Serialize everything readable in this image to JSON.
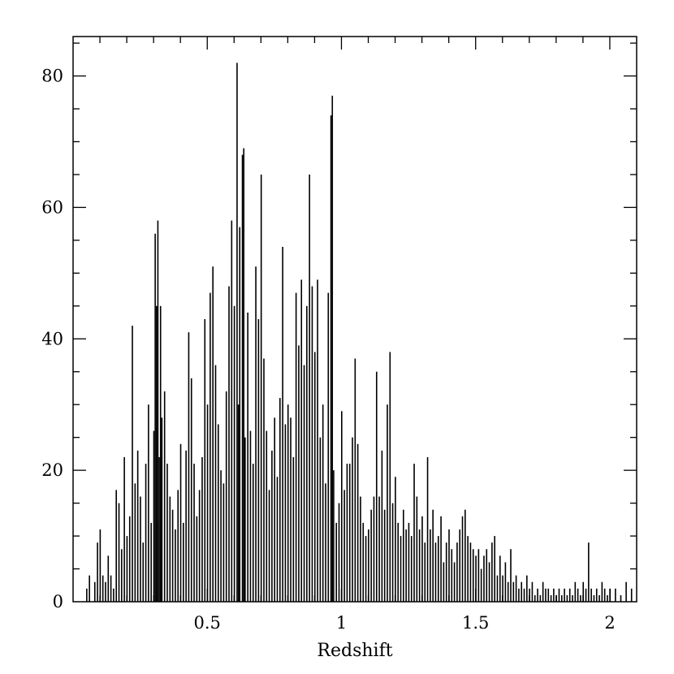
{
  "chart_data": {
    "type": "bar",
    "xlabel": "Redshift",
    "ylabel": "",
    "xlim": [
      0.0,
      2.1
    ],
    "ylim": [
      0,
      86
    ],
    "x_ticks": [
      {
        "value": 0.5,
        "label": "0.5"
      },
      {
        "value": 1.0,
        "label": "1"
      },
      {
        "value": 1.5,
        "label": "1.5"
      },
      {
        "value": 2.0,
        "label": "2"
      }
    ],
    "y_ticks": [
      {
        "value": 0,
        "label": "0"
      },
      {
        "value": 20,
        "label": "20"
      },
      {
        "value": 40,
        "label": "40"
      },
      {
        "value": 60,
        "label": "60"
      },
      {
        "value": 80,
        "label": "80"
      }
    ],
    "bin_width": 0.00286,
    "bins": [
      [
        0.05,
        2
      ],
      [
        0.06,
        4
      ],
      [
        0.08,
        3
      ],
      [
        0.09,
        9
      ],
      [
        0.1,
        11
      ],
      [
        0.11,
        4
      ],
      [
        0.12,
        3
      ],
      [
        0.13,
        7
      ],
      [
        0.14,
        4
      ],
      [
        0.15,
        2
      ],
      [
        0.16,
        17
      ],
      [
        0.17,
        15
      ],
      [
        0.18,
        8
      ],
      [
        0.19,
        22
      ],
      [
        0.2,
        10
      ],
      [
        0.21,
        13
      ],
      [
        0.22,
        42
      ],
      [
        0.23,
        18
      ],
      [
        0.24,
        23
      ],
      [
        0.25,
        16
      ],
      [
        0.26,
        9
      ],
      [
        0.27,
        21
      ],
      [
        0.28,
        30
      ],
      [
        0.29,
        12
      ],
      [
        0.3,
        26
      ],
      [
        0.305,
        56
      ],
      [
        0.31,
        45
      ],
      [
        0.315,
        58
      ],
      [
        0.32,
        22
      ],
      [
        0.325,
        45
      ],
      [
        0.33,
        28
      ],
      [
        0.34,
        32
      ],
      [
        0.35,
        21
      ],
      [
        0.36,
        16
      ],
      [
        0.37,
        14
      ],
      [
        0.38,
        11
      ],
      [
        0.39,
        17
      ],
      [
        0.4,
        24
      ],
      [
        0.41,
        12
      ],
      [
        0.42,
        23
      ],
      [
        0.43,
        41
      ],
      [
        0.44,
        34
      ],
      [
        0.45,
        21
      ],
      [
        0.46,
        13
      ],
      [
        0.47,
        17
      ],
      [
        0.48,
        22
      ],
      [
        0.49,
        43
      ],
      [
        0.5,
        30
      ],
      [
        0.51,
        47
      ],
      [
        0.52,
        51
      ],
      [
        0.53,
        36
      ],
      [
        0.54,
        27
      ],
      [
        0.55,
        20
      ],
      [
        0.56,
        18
      ],
      [
        0.57,
        32
      ],
      [
        0.58,
        48
      ],
      [
        0.59,
        58
      ],
      [
        0.6,
        45
      ],
      [
        0.61,
        82
      ],
      [
        0.615,
        30
      ],
      [
        0.62,
        57
      ],
      [
        0.63,
        68
      ],
      [
        0.635,
        69
      ],
      [
        0.64,
        25
      ],
      [
        0.65,
        44
      ],
      [
        0.66,
        26
      ],
      [
        0.67,
        21
      ],
      [
        0.68,
        51
      ],
      [
        0.69,
        43
      ],
      [
        0.7,
        65
      ],
      [
        0.71,
        37
      ],
      [
        0.72,
        26
      ],
      [
        0.73,
        17
      ],
      [
        0.74,
        23
      ],
      [
        0.75,
        28
      ],
      [
        0.76,
        19
      ],
      [
        0.77,
        31
      ],
      [
        0.78,
        54
      ],
      [
        0.79,
        27
      ],
      [
        0.8,
        30
      ],
      [
        0.81,
        28
      ],
      [
        0.82,
        22
      ],
      [
        0.83,
        47
      ],
      [
        0.84,
        39
      ],
      [
        0.85,
        49
      ],
      [
        0.86,
        36
      ],
      [
        0.87,
        45
      ],
      [
        0.88,
        65
      ],
      [
        0.89,
        48
      ],
      [
        0.9,
        38
      ],
      [
        0.91,
        49
      ],
      [
        0.92,
        25
      ],
      [
        0.93,
        30
      ],
      [
        0.94,
        18
      ],
      [
        0.95,
        47
      ],
      [
        0.96,
        74
      ],
      [
        0.965,
        77
      ],
      [
        0.97,
        20
      ],
      [
        0.98,
        12
      ],
      [
        0.99,
        15
      ],
      [
        1.0,
        29
      ],
      [
        1.01,
        17
      ],
      [
        1.02,
        21
      ],
      [
        1.03,
        21
      ],
      [
        1.04,
        25
      ],
      [
        1.05,
        37
      ],
      [
        1.06,
        24
      ],
      [
        1.07,
        16
      ],
      [
        1.08,
        12
      ],
      [
        1.09,
        10
      ],
      [
        1.1,
        11
      ],
      [
        1.11,
        14
      ],
      [
        1.12,
        16
      ],
      [
        1.13,
        35
      ],
      [
        1.14,
        16
      ],
      [
        1.15,
        23
      ],
      [
        1.16,
        14
      ],
      [
        1.17,
        30
      ],
      [
        1.18,
        38
      ],
      [
        1.19,
        15
      ],
      [
        1.2,
        19
      ],
      [
        1.21,
        12
      ],
      [
        1.22,
        10
      ],
      [
        1.23,
        14
      ],
      [
        1.24,
        11
      ],
      [
        1.25,
        12
      ],
      [
        1.26,
        10
      ],
      [
        1.27,
        21
      ],
      [
        1.28,
        16
      ],
      [
        1.29,
        11
      ],
      [
        1.3,
        13
      ],
      [
        1.31,
        9
      ],
      [
        1.32,
        22
      ],
      [
        1.33,
        11
      ],
      [
        1.34,
        14
      ],
      [
        1.35,
        9
      ],
      [
        1.36,
        10
      ],
      [
        1.37,
        13
      ],
      [
        1.38,
        6
      ],
      [
        1.39,
        9
      ],
      [
        1.4,
        11
      ],
      [
        1.41,
        8
      ],
      [
        1.42,
        6
      ],
      [
        1.43,
        9
      ],
      [
        1.44,
        11
      ],
      [
        1.45,
        13
      ],
      [
        1.46,
        14
      ],
      [
        1.47,
        10
      ],
      [
        1.48,
        9
      ],
      [
        1.49,
        8
      ],
      [
        1.5,
        7
      ],
      [
        1.51,
        8
      ],
      [
        1.52,
        5
      ],
      [
        1.53,
        7
      ],
      [
        1.54,
        8
      ],
      [
        1.55,
        6
      ],
      [
        1.56,
        9
      ],
      [
        1.57,
        10
      ],
      [
        1.58,
        4
      ],
      [
        1.59,
        7
      ],
      [
        1.6,
        4
      ],
      [
        1.61,
        6
      ],
      [
        1.62,
        3
      ],
      [
        1.63,
        8
      ],
      [
        1.64,
        3
      ],
      [
        1.65,
        4
      ],
      [
        1.66,
        2
      ],
      [
        1.67,
        3
      ],
      [
        1.68,
        2
      ],
      [
        1.69,
        4
      ],
      [
        1.7,
        2
      ],
      [
        1.71,
        3
      ],
      [
        1.72,
        1
      ],
      [
        1.73,
        2
      ],
      [
        1.74,
        1
      ],
      [
        1.75,
        3
      ],
      [
        1.76,
        2
      ],
      [
        1.77,
        2
      ],
      [
        1.78,
        1
      ],
      [
        1.79,
        2
      ],
      [
        1.8,
        1
      ],
      [
        1.81,
        2
      ],
      [
        1.82,
        1
      ],
      [
        1.83,
        2
      ],
      [
        1.84,
        1
      ],
      [
        1.85,
        2
      ],
      [
        1.86,
        1
      ],
      [
        1.87,
        3
      ],
      [
        1.88,
        2
      ],
      [
        1.89,
        1
      ],
      [
        1.9,
        3
      ],
      [
        1.91,
        2
      ],
      [
        1.92,
        9
      ],
      [
        1.93,
        2
      ],
      [
        1.94,
        1
      ],
      [
        1.95,
        2
      ],
      [
        1.96,
        1
      ],
      [
        1.97,
        3
      ],
      [
        1.98,
        2
      ],
      [
        1.99,
        1
      ],
      [
        2.0,
        2
      ],
      [
        2.02,
        2
      ],
      [
        2.04,
        1
      ],
      [
        2.06,
        3
      ],
      [
        2.08,
        2
      ]
    ]
  }
}
